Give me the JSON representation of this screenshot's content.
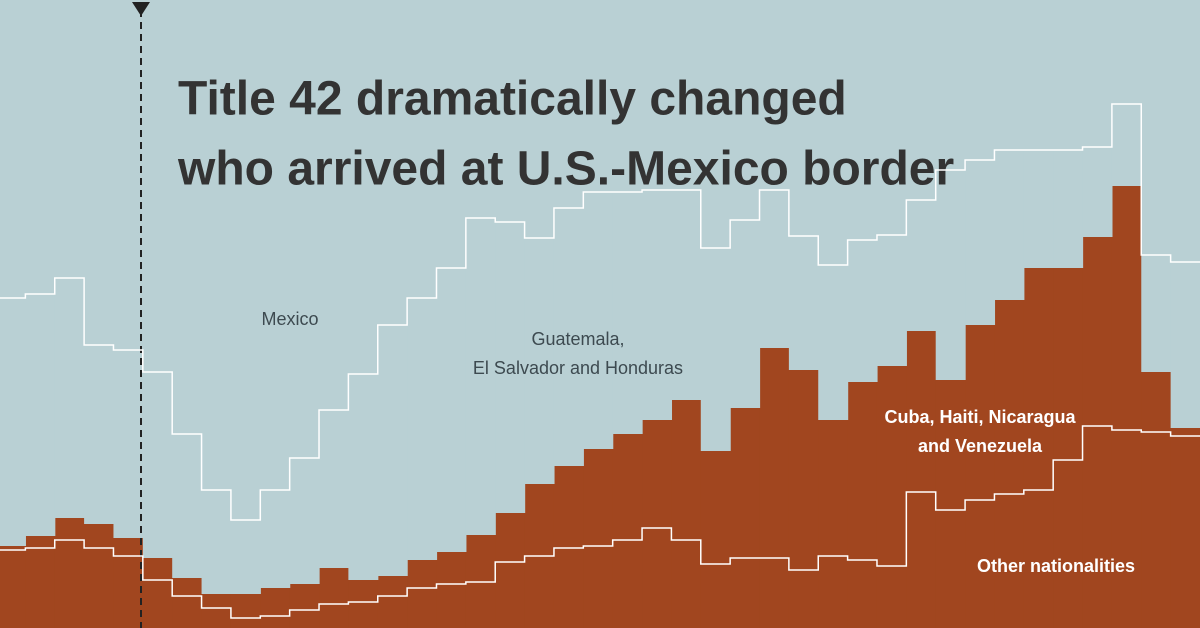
{
  "chart_data": {
    "type": "stacked-step-area",
    "title": [
      "Title 42 dramatically changed",
      "who arrived at U.S.-Mexico border"
    ],
    "annotations": [
      "Mexico"
    ],
    "categories": [
      null,
      null,
      null,
      null,
      null,
      null,
      null,
      null,
      null,
      null,
      null,
      null,
      null,
      null,
      null,
      null,
      null,
      null,
      null,
      null,
      null,
      null,
      null,
      null,
      null,
      null,
      null,
      null,
      null,
      null,
      null,
      null,
      null,
      null,
      null,
      null,
      null,
      null,
      null,
      null,
      null
    ],
    "ylim": [
      0,
      628
    ],
    "series": [
      {
        "name": [
          "Other nationalities"
        ],
        "color": "#a1461f",
        "values": [
          78,
          80,
          88,
          80,
          72,
          48,
          32,
          20,
          10,
          12,
          18,
          24,
          26,
          32,
          40,
          44,
          46,
          66,
          72,
          80,
          82,
          88,
          100,
          88,
          64,
          70,
          70,
          58,
          72,
          68,
          62,
          136,
          118,
          128,
          134,
          138,
          168,
          202,
          198,
          196,
          192
        ]
      },
      {
        "name": [
          "Cuba, Haiti, Nicaragua",
          "and Venezuela"
        ],
        "color": "#a1461f",
        "values": [
          4,
          12,
          22,
          24,
          18,
          22,
          18,
          14,
          24,
          28,
          26,
          36,
          22,
          20,
          28,
          32,
          47,
          49,
          72,
          82,
          97,
          106,
          108,
          140,
          113,
          150,
          210,
          200,
          136,
          178,
          200,
          161,
          130,
          175,
          194,
          222,
          192,
          189,
          244,
          60,
          8
        ]
      },
      {
        "name": [
          "Guatemala,",
          "El Salvador and Honduras"
        ],
        "color": "#b9d0d4",
        "values": [
          248,
          242,
          240,
          179,
          188,
          186,
          144,
          104,
          74,
          98,
          126,
          158,
          206,
          251,
          262,
          284,
          317,
          291,
          246,
          258,
          257,
          242,
          230,
          210,
          203,
          188,
          158,
          134,
          155,
          142,
          131,
          131,
          210,
          165,
          150,
          118,
          118,
          90,
          82,
          117,
          166
        ]
      }
    ]
  }
}
